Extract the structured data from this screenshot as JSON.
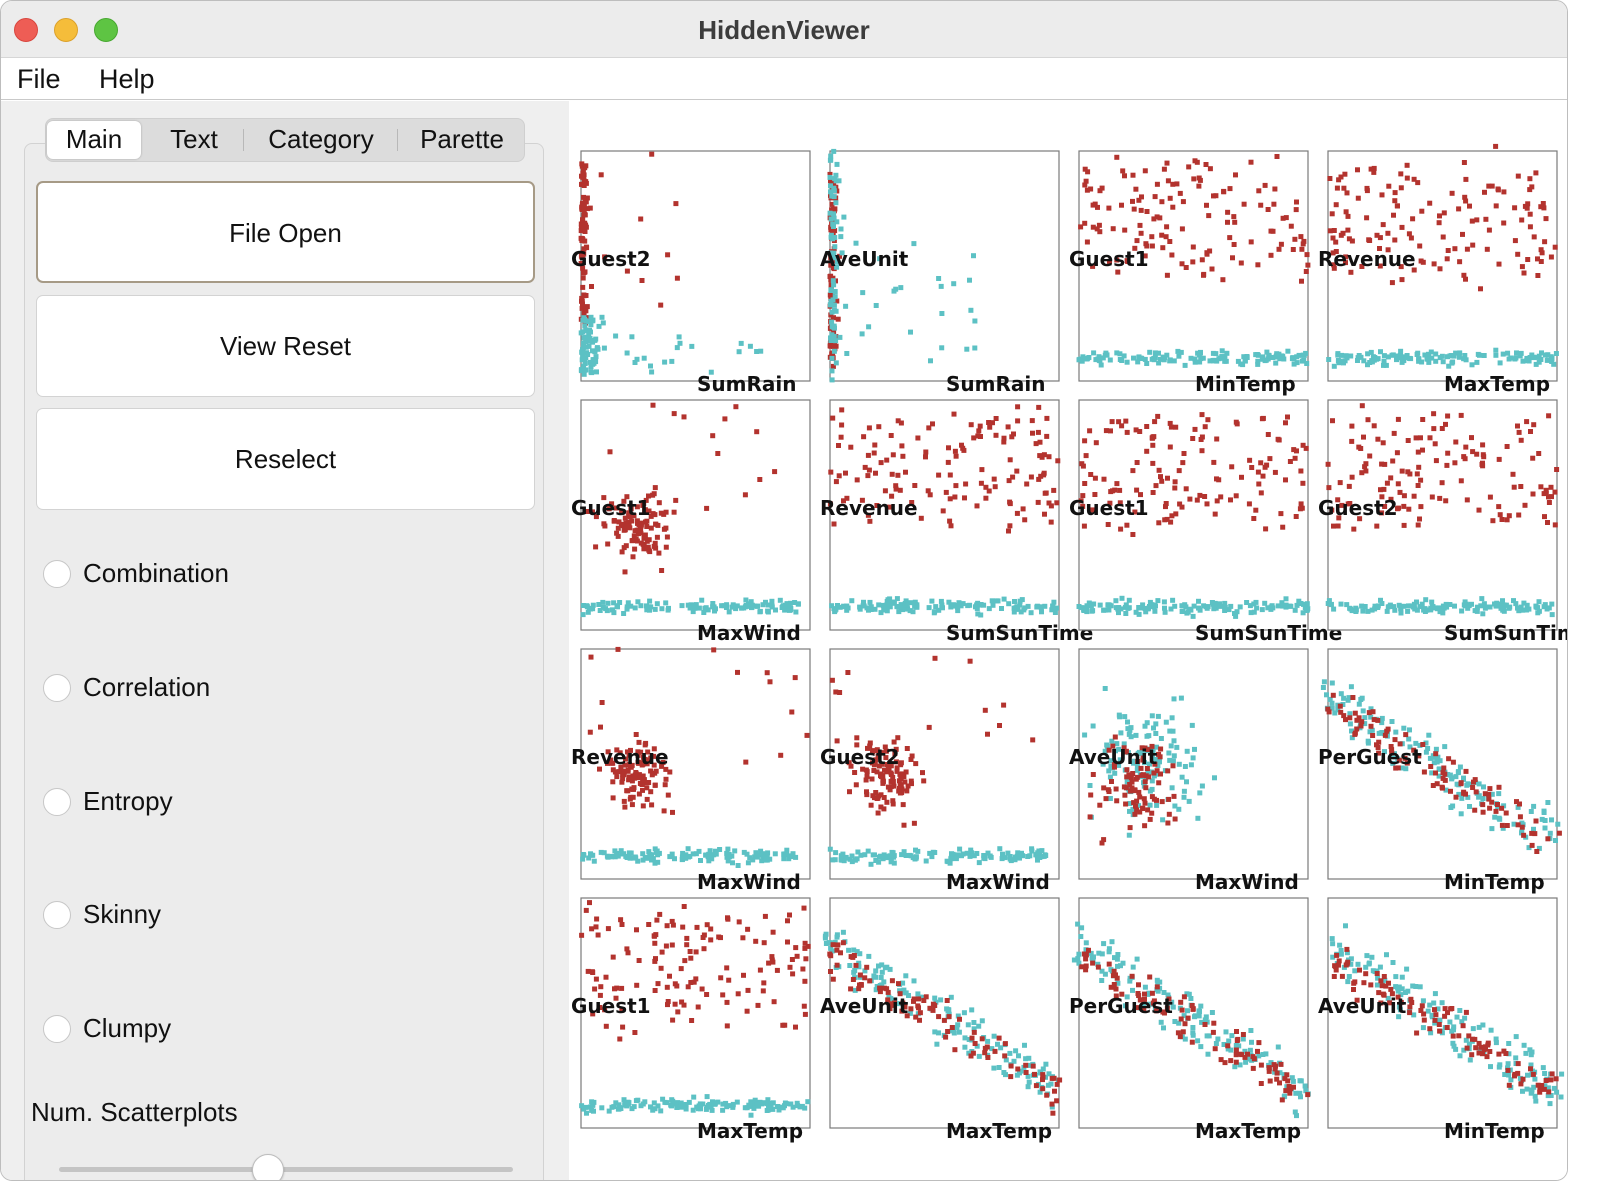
{
  "window": {
    "title": "HiddenViewer"
  },
  "menu": {
    "file": "File",
    "help": "Help"
  },
  "tabs": [
    {
      "label": "Main",
      "selected": true
    },
    {
      "label": "Text",
      "selected": false
    },
    {
      "label": "Category",
      "selected": false
    },
    {
      "label": "Parette",
      "selected": false
    }
  ],
  "buttons": {
    "file_open": "File Open",
    "view_reset": "View Reset",
    "reselect": "Reselect"
  },
  "options": [
    {
      "label": "Combination",
      "selected": false
    },
    {
      "label": "Correlation",
      "selected": false
    },
    {
      "label": "Entropy",
      "selected": false
    },
    {
      "label": "Skinny",
      "selected": false
    },
    {
      "label": "Clumpy",
      "selected": false
    }
  ],
  "num_scatterplots": {
    "label": "Num. Scatterplots"
  },
  "colors": {
    "red": "#b3332e",
    "cyan": "#5cc1c4"
  },
  "scatterplots": [
    {
      "y": "Guest2",
      "x": "SumRain",
      "pattern": "lblock"
    },
    {
      "y": "AveUnit",
      "x": "SumRain",
      "pattern": "vstripe"
    },
    {
      "y": "Guest1",
      "x": "MinTemp",
      "pattern": "bandtop"
    },
    {
      "y": "Revenue",
      "x": "MaxTemp",
      "pattern": "bandtop"
    },
    {
      "y": "Guest1",
      "x": "MaxWind",
      "pattern": "clusterleft"
    },
    {
      "y": "Revenue",
      "x": "SumSunTime",
      "pattern": "bandtop"
    },
    {
      "y": "Guest1",
      "x": "SumSunTime",
      "pattern": "bandtop"
    },
    {
      "y": "Guest2",
      "x": "SumSunTime",
      "pattern": "bandtop"
    },
    {
      "y": "Revenue",
      "x": "MaxWind",
      "pattern": "clusterleft"
    },
    {
      "y": "Guest2",
      "x": "MaxWind",
      "pattern": "clusterleft"
    },
    {
      "y": "AveUnit",
      "x": "MaxWind",
      "pattern": "mixed"
    },
    {
      "y": "PerGuest",
      "x": "MinTemp",
      "pattern": "diag"
    },
    {
      "y": "Guest1",
      "x": "MaxTemp",
      "pattern": "bandtop"
    },
    {
      "y": "AveUnit",
      "x": "MaxTemp",
      "pattern": "diag"
    },
    {
      "y": "PerGuest",
      "x": "MaxTemp",
      "pattern": "diag"
    },
    {
      "y": "AveUnit",
      "x": "MinTemp",
      "pattern": "diag"
    }
  ]
}
